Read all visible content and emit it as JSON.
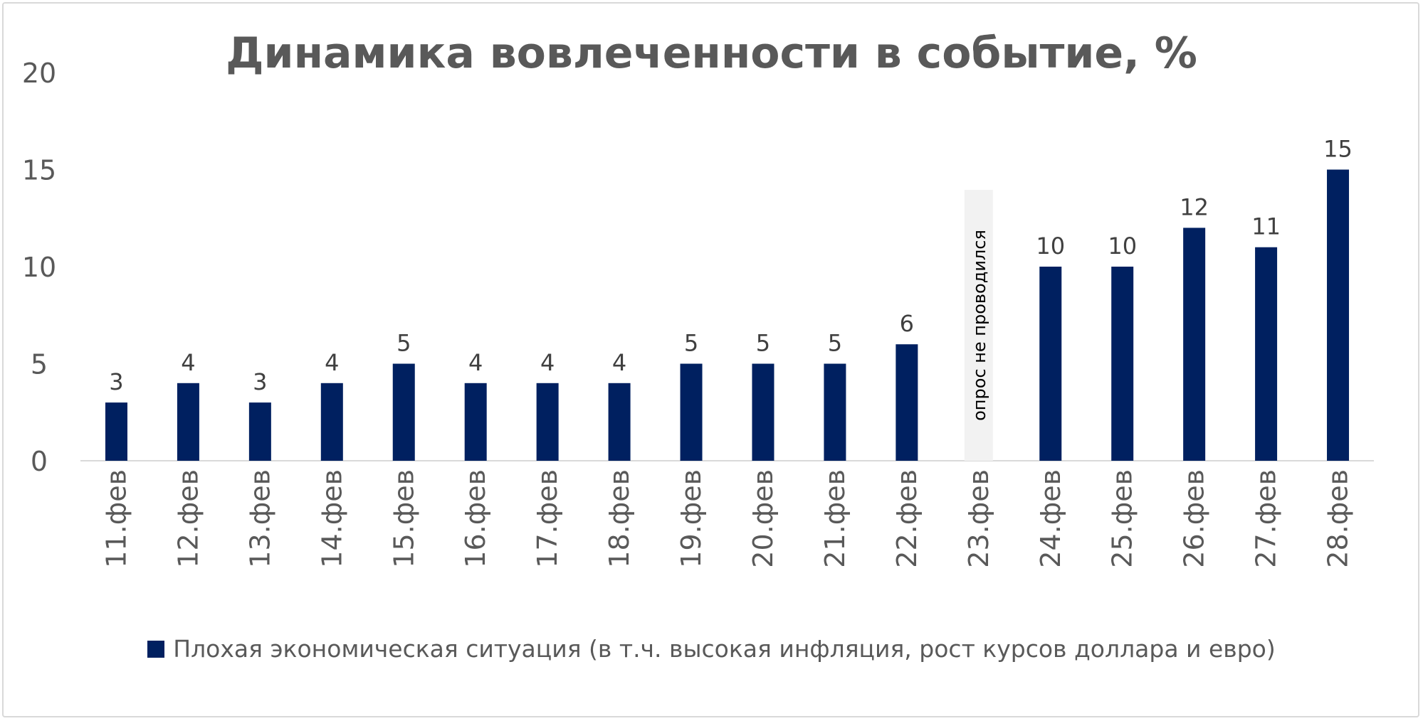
{
  "chart_data": {
    "type": "bar",
    "title": "Динамика вовлеченности в событие, %",
    "categories": [
      "11.фев",
      "12.фев",
      "13.фев",
      "14.фев",
      "15.фев",
      "16.фев",
      "17.фев",
      "18.фев",
      "19.фев",
      "20.фев",
      "21.фев",
      "22.фев",
      "23.фев",
      "24.фев",
      "25.фев",
      "26.фев",
      "27.фев",
      "28.фев"
    ],
    "series": [
      {
        "name": "Плохая экономическая ситуация (в т.ч. высокая инфляция, рост курсов доллара и евро)",
        "values": [
          3,
          4,
          3,
          4,
          5,
          4,
          4,
          4,
          5,
          5,
          5,
          6,
          null,
          10,
          10,
          12,
          11,
          15
        ],
        "color": "#002060"
      }
    ],
    "ylim": [
      0,
      20
    ],
    "yticks": [
      0,
      5,
      10,
      15,
      20
    ],
    "grid": false,
    "data_labels": true,
    "legend_position": "bottom",
    "annotation": {
      "category": "23.фев",
      "text": "опрос не проводился"
    }
  }
}
